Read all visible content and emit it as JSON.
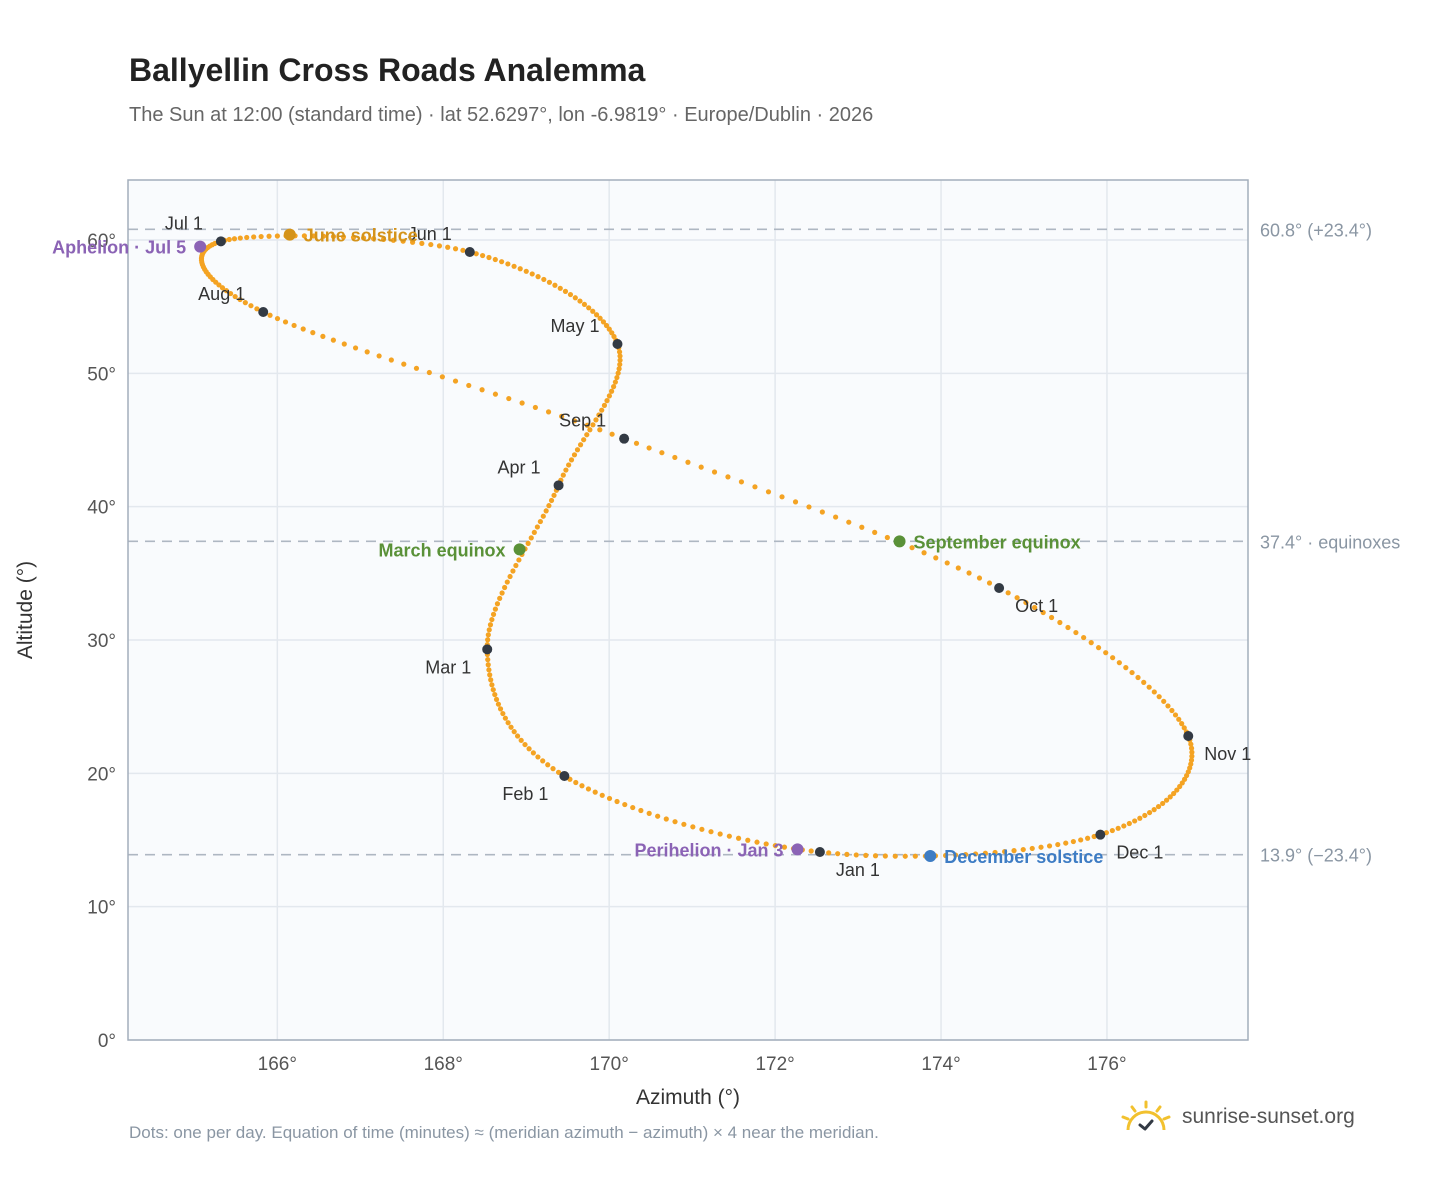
{
  "title": "Ballyellin Cross Roads Analemma",
  "subtitle": "The Sun at 12:00 (standard time) · lat 52.6297°, lon -6.9819° · Europe/Dublin · 2026",
  "footnote": "Dots: one per day. Equation of time (minutes) ≈ (meridian azimuth − azimuth) × 4 near the meridian.",
  "brand": "sunrise-sunset.org",
  "colors": {
    "path": "#f4a323",
    "month_dot": "#333a44",
    "solstice_june": "#d4931a",
    "solstice_dec": "#3d7cc4",
    "equinox": "#5a9138",
    "apsis": "#8b63b5",
    "reference": "#aeb7c2"
  },
  "chart_data": {
    "type": "scatter",
    "xlabel": "Azimuth (°)",
    "ylabel": "Altitude (°)",
    "xlim": [
      164.2,
      177.7
    ],
    "ylim": [
      0,
      64.5
    ],
    "x_ticks": [
      166,
      168,
      170,
      172,
      174,
      176
    ],
    "x_tick_labels": [
      "166°",
      "168°",
      "170°",
      "172°",
      "174°",
      "176°"
    ],
    "y_ticks": [
      0,
      10,
      20,
      30,
      40,
      50,
      60
    ],
    "y_tick_labels": [
      "0°",
      "10°",
      "20°",
      "30°",
      "40°",
      "50°",
      "60°"
    ],
    "reference_lines": [
      {
        "y": 60.8,
        "label": "60.8° (+23.4°)"
      },
      {
        "y": 37.4,
        "label": "37.4° · equinoxes"
      },
      {
        "y": 13.9,
        "label": "13.9° (−23.4°)"
      }
    ],
    "path_anchors": [
      {
        "d": 0,
        "az": 172.54,
        "alt": 14.1
      },
      {
        "d": 31,
        "az": 169.46,
        "alt": 19.8
      },
      {
        "d": 59,
        "az": 168.53,
        "alt": 29.3
      },
      {
        "d": 90,
        "az": 169.39,
        "alt": 41.6
      },
      {
        "d": 120,
        "az": 170.1,
        "alt": 52.2
      },
      {
        "d": 151,
        "az": 168.32,
        "alt": 59.1
      },
      {
        "d": 181,
        "az": 165.32,
        "alt": 59.9
      },
      {
        "d": 212,
        "az": 165.83,
        "alt": 54.6
      },
      {
        "d": 243,
        "az": 170.18,
        "alt": 45.1
      },
      {
        "d": 273,
        "az": 174.7,
        "alt": 33.9
      },
      {
        "d": 304,
        "az": 176.98,
        "alt": 22.8
      },
      {
        "d": 334,
        "az": 175.92,
        "alt": 15.4
      },
      {
        "d": 365,
        "az": 172.54,
        "alt": 14.1
      }
    ],
    "month_points": [
      {
        "label": "Jan 1",
        "az": 172.54,
        "alt": 14.1,
        "pos": "below-right"
      },
      {
        "label": "Feb 1",
        "az": 169.46,
        "alt": 19.8,
        "pos": "below-left"
      },
      {
        "label": "Mar 1",
        "az": 168.53,
        "alt": 29.3,
        "pos": "below-left"
      },
      {
        "label": "Apr 1",
        "az": 169.39,
        "alt": 41.6,
        "pos": "above-left"
      },
      {
        "label": "May 1",
        "az": 170.1,
        "alt": 52.2,
        "pos": "above-left"
      },
      {
        "label": "Jun 1",
        "az": 168.32,
        "alt": 59.1,
        "pos": "above-left"
      },
      {
        "label": "Jul 1",
        "az": 165.32,
        "alt": 59.9,
        "pos": "above-left"
      },
      {
        "label": "Aug 1",
        "az": 165.83,
        "alt": 54.6,
        "pos": "above-left"
      },
      {
        "label": "Sep 1",
        "az": 170.18,
        "alt": 45.1,
        "pos": "above-left"
      },
      {
        "label": "Oct 1",
        "az": 174.7,
        "alt": 33.9,
        "pos": "below-right"
      },
      {
        "label": "Nov 1",
        "az": 176.98,
        "alt": 22.8,
        "pos": "below-right"
      },
      {
        "label": "Dec 1",
        "az": 175.92,
        "alt": 15.4,
        "pos": "below-right"
      }
    ],
    "events": [
      {
        "label": "June solstice",
        "az": 166.15,
        "alt": 60.4,
        "color": "#d4931a",
        "pos": "right"
      },
      {
        "label": "December solstice",
        "az": 173.87,
        "alt": 13.8,
        "color": "#3d7cc4",
        "pos": "right"
      },
      {
        "label": "March equinox",
        "az": 168.92,
        "alt": 36.8,
        "color": "#5a9138",
        "pos": "left"
      },
      {
        "label": "September equinox",
        "az": 173.5,
        "alt": 37.4,
        "color": "#5a9138",
        "pos": "right"
      },
      {
        "label": "Aphelion · Jul 5",
        "az": 165.07,
        "alt": 59.5,
        "color": "#8b63b5",
        "pos": "left"
      },
      {
        "label": "Perihelion · Jan 3",
        "az": 172.27,
        "alt": 14.3,
        "color": "#8b63b5",
        "pos": "left"
      }
    ]
  }
}
